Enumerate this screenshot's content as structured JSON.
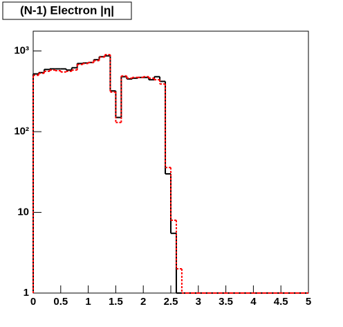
{
  "chart_data": {
    "type": "histogram",
    "title": "(N-1) Electron |η|",
    "log_y": true,
    "bins": [
      0,
      0.1,
      0.2,
      0.3,
      0.4,
      0.5,
      0.6,
      0.7,
      0.8,
      0.9,
      1,
      1.1,
      1.2,
      1.3,
      1.4,
      1.5,
      1.6,
      1.7,
      1.8,
      1.9,
      2,
      2.1,
      2.2,
      2.3,
      2.4,
      2.5,
      2.6,
      2.7,
      2.8,
      2.9,
      3,
      3.1,
      3.2,
      3.3,
      3.4,
      3.5,
      3.6,
      3.7,
      3.8,
      3.9,
      4,
      4.1,
      4.2,
      4.3,
      4.4,
      4.5,
      4.6,
      4.7,
      4.8,
      4.9,
      5
    ],
    "series": [
      {
        "color": "#000000",
        "values": [
          520,
          540,
          590,
          600,
          600,
          600,
          580,
          620,
          700,
          710,
          720,
          780,
          850,
          870,
          320,
          150,
          480,
          450,
          460,
          470,
          470,
          440,
          480,
          420,
          30,
          5.5,
          0,
          0,
          0,
          0,
          0,
          0,
          0,
          0,
          0,
          0,
          0,
          0,
          0,
          0,
          0,
          0,
          0,
          0,
          0,
          0,
          0,
          0,
          0,
          0
        ]
      },
      {
        "color": "#ff0000",
        "dashed": true,
        "values": [
          500,
          530,
          560,
          580,
          570,
          550,
          560,
          580,
          680,
          700,
          720,
          760,
          840,
          900,
          310,
          130,
          490,
          460,
          470,
          470,
          480,
          460,
          440,
          390,
          36,
          8,
          2,
          0,
          0,
          0,
          0,
          0,
          0,
          0,
          0,
          0,
          0,
          0,
          0,
          0,
          0,
          0,
          0,
          0,
          0,
          0,
          0,
          0,
          0,
          0
        ]
      }
    ],
    "xlim": [
      0,
      5
    ],
    "xticks": [
      0,
      0.5,
      1,
      1.5,
      2,
      2.5,
      3,
      3.5,
      4,
      4.5,
      5
    ],
    "ylim": [
      1,
      1760
    ],
    "yticks": [
      1,
      10,
      {
        "value": 100,
        "label": "10²"
      },
      {
        "value": 1000,
        "label": "10³"
      }
    ]
  }
}
